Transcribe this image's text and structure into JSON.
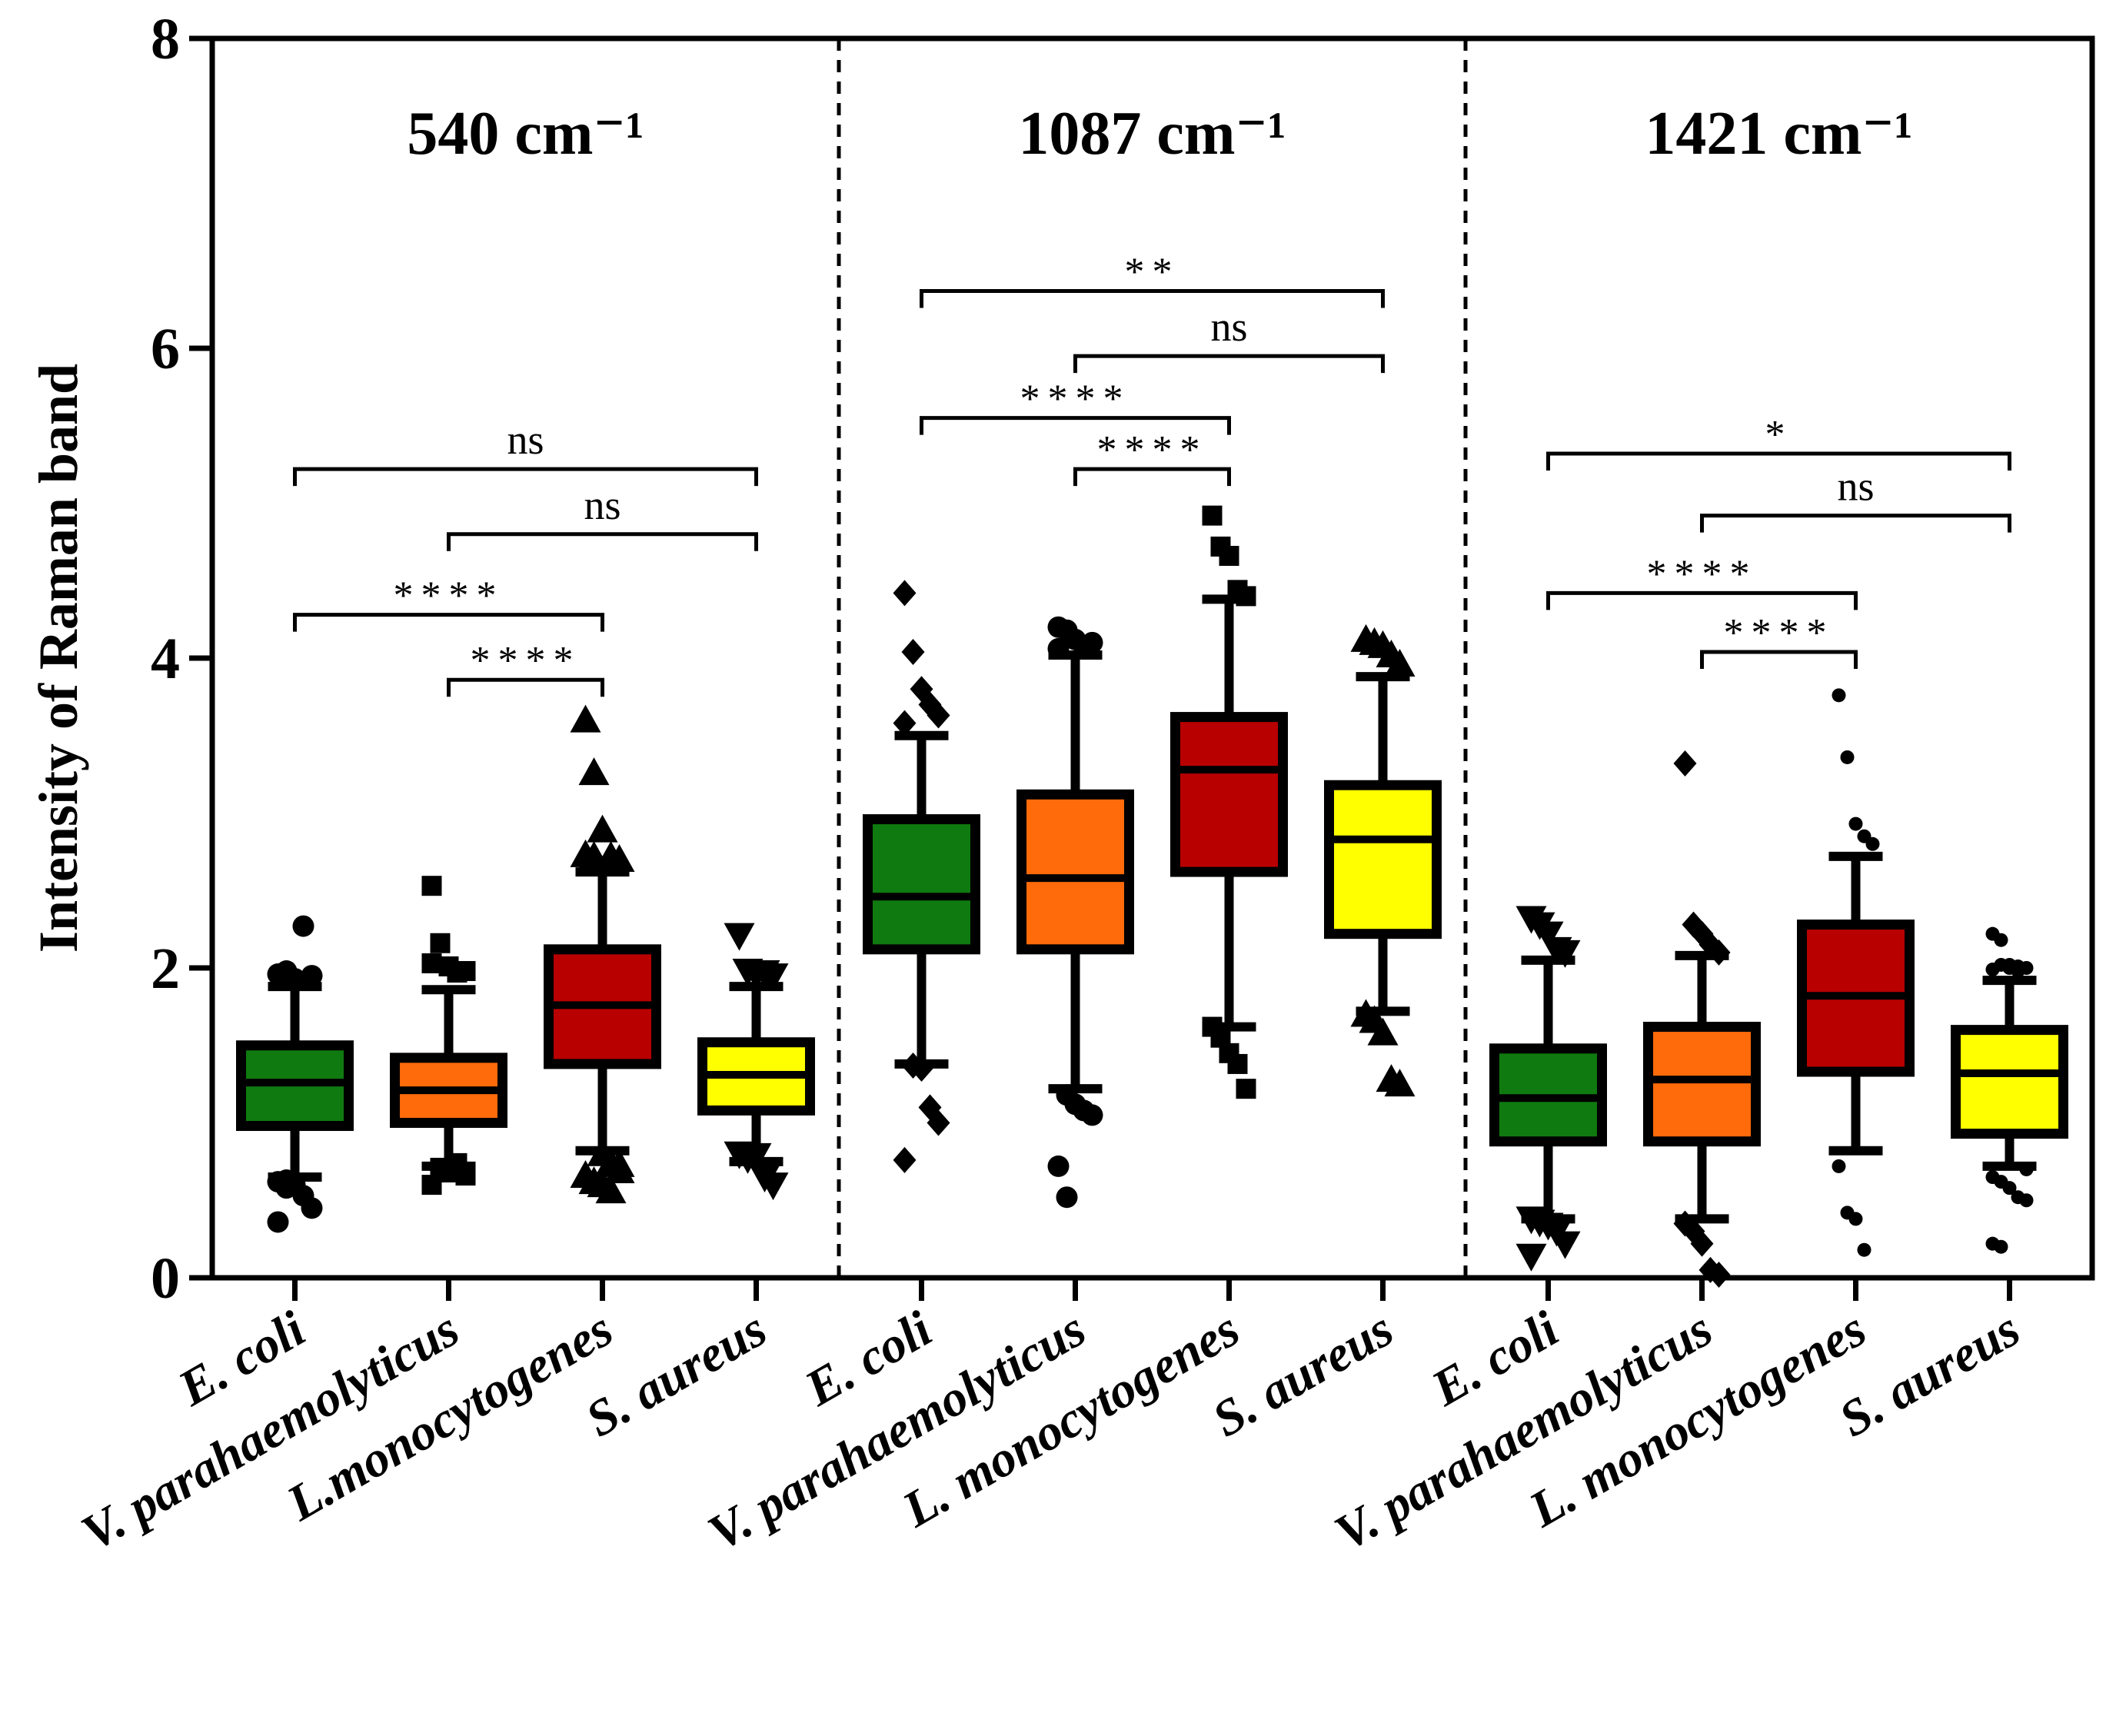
{
  "chart_data": {
    "type": "box",
    "ylabel": "Intensity of Raman band",
    "ylim": [
      0,
      8
    ],
    "yticks": [
      "0",
      "2",
      "4",
      "6",
      "8"
    ],
    "panels": [
      {
        "title": "540 cm⁻¹",
        "groups": [
          {
            "label": "E. coli",
            "color": "#0f7a0f",
            "marker": "circle",
            "min": 0.65,
            "q1": 0.98,
            "median": 1.26,
            "q3": 1.5,
            "max": 1.88,
            "outliers": [
              1.96,
              1.98,
              1.93,
              2.27,
              1.95,
              0.62,
              0.58,
              0.6,
              0.53,
              0.45,
              0.36,
              0.63
            ]
          },
          {
            "label": "V. parahaemolyticus",
            "color": "#ff6a0a",
            "marker": "square",
            "min": 0.72,
            "q1": 1.0,
            "median": 1.21,
            "q3": 1.42,
            "max": 1.86,
            "outliers": [
              2.53,
              2.16,
              2.01,
              1.97,
              1.98,
              2.03,
              0.71,
              0.68,
              0.74,
              0.66,
              0.6
            ]
          },
          {
            "label": "L.monocytogenes",
            "color": "#b80000",
            "marker": "triangle",
            "min": 0.82,
            "q1": 1.38,
            "median": 1.76,
            "q3": 2.12,
            "max": 2.62,
            "outliers": [
              3.6,
              3.26,
              2.89,
              2.72,
              2.7,
              2.73,
              2.72,
              0.8,
              0.74,
              0.69,
              0.66,
              0.62,
              0.6,
              0.56,
              0.73
            ]
          },
          {
            "label": "S. aureus",
            "color": "#ffff00",
            "marker": "triangle-down",
            "min": 0.75,
            "q1": 1.08,
            "median": 1.31,
            "q3": 1.52,
            "max": 1.88,
            "outliers": [
              2.21,
              1.98,
              1.96,
              1.97,
              1.95,
              0.8,
              0.77,
              0.79,
              0.65,
              0.6
            ]
          }
        ],
        "significance": [
          {
            "from": 0,
            "to": 3,
            "label": "ns",
            "y": 5.22
          },
          {
            "from": 1,
            "to": 3,
            "label": "ns",
            "y": 4.8
          },
          {
            "from": 0,
            "to": 2,
            "label": "****",
            "y": 4.28
          },
          {
            "from": 1,
            "to": 2,
            "label": "****",
            "y": 3.86
          }
        ]
      },
      {
        "title": "1087 cm⁻¹",
        "groups": [
          {
            "label": "E. coli",
            "color": "#0f7a0f",
            "marker": "diamond",
            "min": 1.38,
            "q1": 2.12,
            "median": 2.46,
            "q3": 2.96,
            "max": 3.5,
            "outliers": [
              4.42,
              4.04,
              3.8,
              3.7,
              3.63,
              3.58,
              1.37,
              1.35,
              1.1,
              1.0,
              0.76
            ]
          },
          {
            "label": "V. parahaemolyticus",
            "color": "#ff6a0a",
            "marker": "circle",
            "min": 1.22,
            "q1": 2.12,
            "median": 2.58,
            "q3": 3.12,
            "max": 4.02,
            "outliers": [
              4.2,
              4.18,
              4.12,
              4.08,
              4.1,
              4.06,
              1.18,
              1.12,
              1.08,
              1.05,
              0.72,
              0.52
            ]
          },
          {
            "label": "L. monocytogenes",
            "color": "#b80000",
            "marker": "square",
            "min": 1.62,
            "q1": 2.62,
            "median": 3.28,
            "q3": 3.62,
            "max": 4.38,
            "outliers": [
              4.92,
              4.72,
              4.66,
              4.44,
              4.4,
              1.62,
              1.55,
              1.45,
              1.38,
              1.22
            ]
          },
          {
            "label": "S. aureus",
            "color": "#ffff00",
            "marker": "triangle",
            "min": 1.72,
            "q1": 2.22,
            "median": 2.83,
            "q3": 3.18,
            "max": 3.88,
            "outliers": [
              4.12,
              4.1,
              4.08,
              4.02,
              3.96,
              1.7,
              1.66,
              1.58,
              1.28,
              1.25
            ]
          }
        ],
        "significance": [
          {
            "from": 0,
            "to": 3,
            "label": "**",
            "y": 6.37
          },
          {
            "from": 1,
            "to": 3,
            "label": "ns",
            "y": 5.95
          },
          {
            "from": 0,
            "to": 2,
            "label": "****",
            "y": 5.55
          },
          {
            "from": 1,
            "to": 2,
            "label": "****",
            "y": 5.22
          }
        ]
      },
      {
        "title": "1421 cm⁻¹",
        "groups": [
          {
            "label": "E. coli",
            "color": "#0f7a0f",
            "marker": "triangle-down",
            "min": 0.38,
            "q1": 0.88,
            "median": 1.16,
            "q3": 1.48,
            "max": 2.05,
            "outliers": [
              2.32,
              2.28,
              2.22,
              2.12,
              2.1,
              0.38,
              0.36,
              0.34,
              0.3,
              0.22,
              0.14
            ]
          },
          {
            "label": "V. parahaemolyticus",
            "color": "#ff6a0a",
            "marker": "diamond",
            "min": 0.38,
            "q1": 0.88,
            "median": 1.28,
            "q3": 1.62,
            "max": 2.08,
            "outliers": [
              3.32,
              2.28,
              2.22,
              2.15,
              2.1,
              0.35,
              0.3,
              0.22,
              0.05,
              0.02
            ]
          },
          {
            "label": "L. monocytogenes",
            "color": "#b80000",
            "marker": "small-circle",
            "min": 0.82,
            "q1": 1.33,
            "median": 1.82,
            "q3": 2.28,
            "max": 2.72,
            "outliers": [
              3.76,
              3.36,
              2.93,
              2.85,
              2.8,
              0.72,
              0.42,
              0.38,
              0.18
            ]
          },
          {
            "label": "S. aureus",
            "color": "#ffff00",
            "marker": "small-circle",
            "min": 0.72,
            "q1": 0.93,
            "median": 1.32,
            "q3": 1.6,
            "max": 1.92,
            "outliers": [
              2.22,
              2.18,
              2.02,
              2.01,
              2.0,
              1.99,
              2.02,
              2.0,
              1.98,
              0.7,
              0.65,
              0.62,
              0.58,
              0.52,
              0.5,
              0.22,
              0.2
            ]
          }
        ],
        "significance": [
          {
            "from": 0,
            "to": 3,
            "label": "*",
            "y": 5.32
          },
          {
            "from": 1,
            "to": 3,
            "label": "ns",
            "y": 4.92
          },
          {
            "from": 0,
            "to": 2,
            "label": "****",
            "y": 4.42
          },
          {
            "from": 1,
            "to": 2,
            "label": "****",
            "y": 4.04
          }
        ]
      }
    ]
  }
}
